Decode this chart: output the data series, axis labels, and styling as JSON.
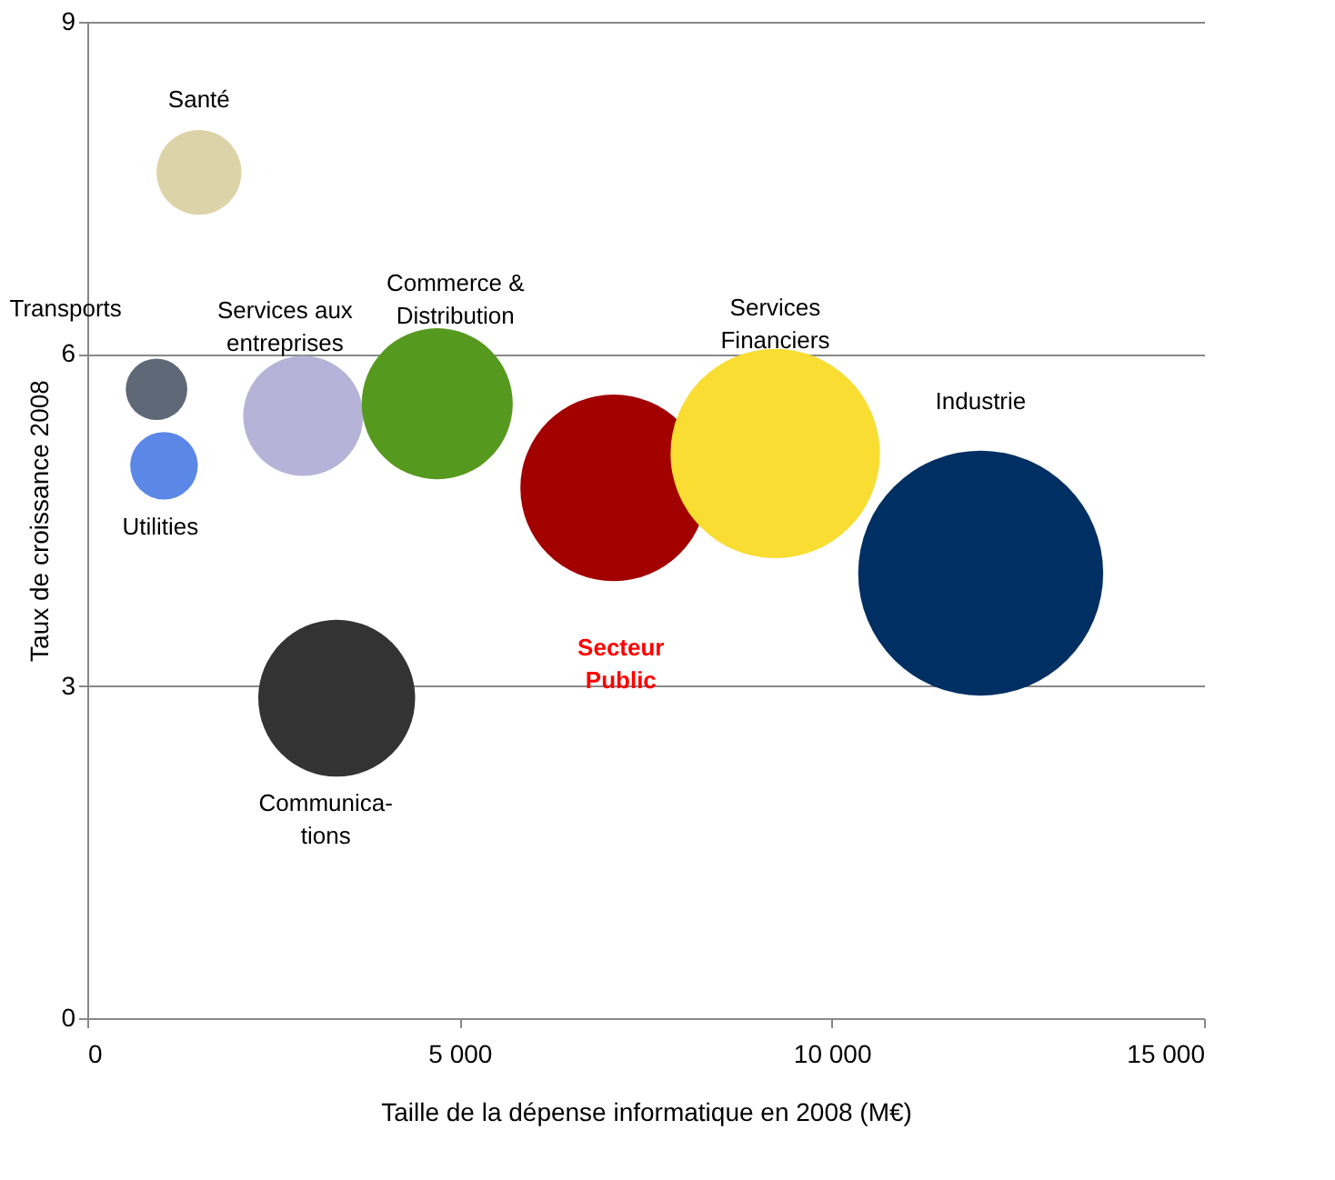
{
  "chart_data": {
    "type": "bubble",
    "xlabel": "Taille de la dépense informatique en 2008 (M€)",
    "ylabel": "Taux de croissance 2008",
    "series": [
      {
        "name": "Santé",
        "color": "#ddd3a8",
        "x": [
          1500
        ],
        "values": [
          7.64
        ],
        "sizes": [
          0.12
        ]
      },
      {
        "name": "Transports",
        "color": "#5f6877",
        "x": [
          930
        ],
        "values": [
          5.68
        ],
        "sizes": [
          0.063
        ]
      },
      {
        "name": "Utilities",
        "color": "#5b87e6",
        "x": [
          1030
        ],
        "values": [
          4.99
        ],
        "sizes": [
          0.076
        ]
      },
      {
        "name": "Services aux\nentreprises",
        "color": "#b7b3d8",
        "x": [
          2900
        ],
        "values": [
          5.44
        ],
        "sizes": [
          0.24
        ]
      },
      {
        "name": "Commerce &\nDistribution",
        "color": "#55991f",
        "x": [
          4700
        ],
        "values": [
          5.55
        ],
        "sizes": [
          0.38
        ]
      },
      {
        "name": "Communica-\ntions",
        "color": "#333333",
        "x": [
          3350
        ],
        "values": [
          2.89
        ],
        "sizes": [
          0.41
        ]
      },
      {
        "name": "Secteur\nPublic",
        "color": "#a30000",
        "x": [
          7070
        ],
        "values": [
          4.79
        ],
        "sizes": [
          0.58
        ]
      },
      {
        "name": "Services\nFinanciers",
        "color": "#f9dd33",
        "x": [
          9240
        ],
        "values": [
          5.1
        ],
        "sizes": [
          0.73
        ]
      },
      {
        "name": "Industrie",
        "color": "#002f63",
        "x": [
          12000
        ],
        "values": [
          4.02
        ],
        "sizes": [
          1
        ]
      }
    ],
    "xlim": [
      0,
      15000
    ],
    "xticks": [
      0,
      {
        "value": 5000,
        "label": "5 000"
      },
      {
        "value": 10000,
        "label": "10 000"
      },
      {
        "value": 15000,
        "label": "15 000"
      }
    ],
    "ylim": [
      0,
      9
    ],
    "yticks": [
      0,
      3,
      6,
      9
    ],
    "grid": "y"
  }
}
